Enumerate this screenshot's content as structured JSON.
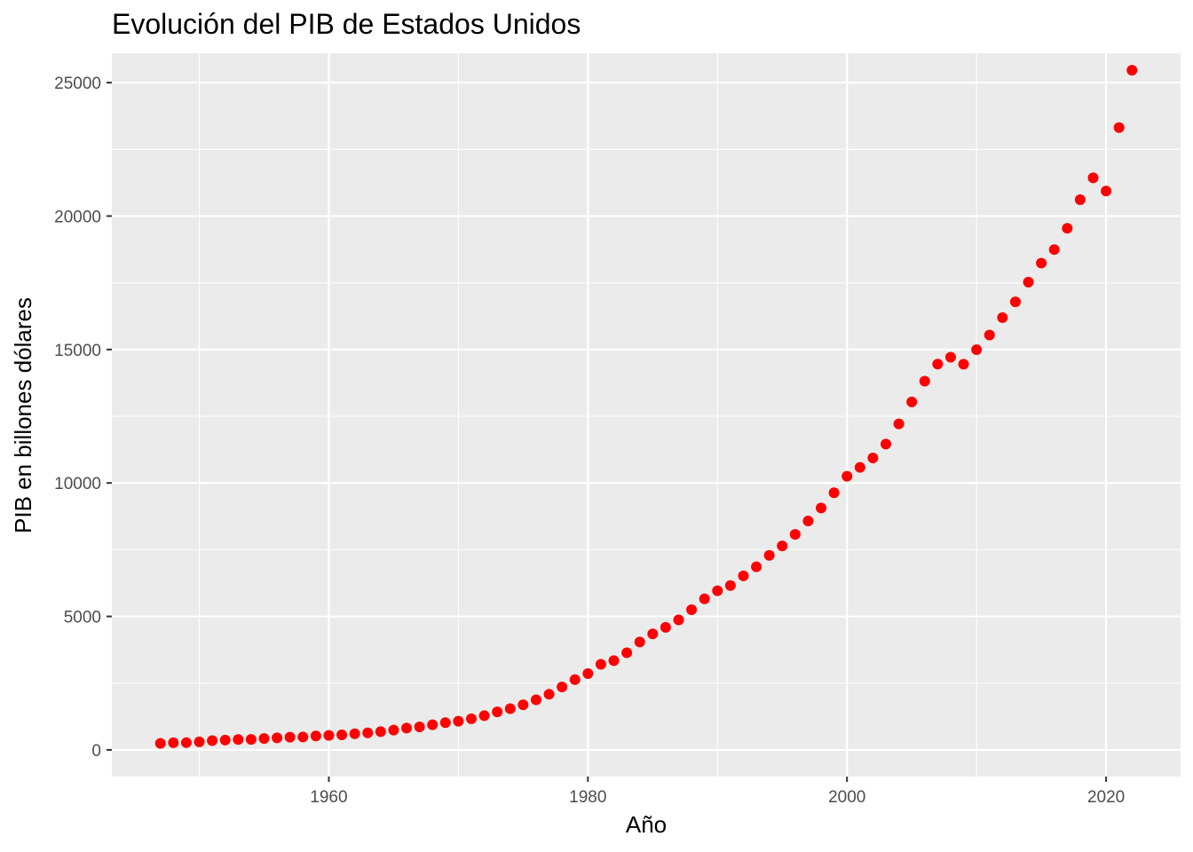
{
  "chart_data": {
    "type": "scatter",
    "title": "Evolución del PIB de Estados Unidos",
    "xlabel": "Año",
    "ylabel": "PIB en billones dólares",
    "xlim": [
      1943.25,
      2025.75
    ],
    "ylim": [
      -1000,
      26100
    ],
    "x_ticks": [
      1960,
      1980,
      2000,
      2020
    ],
    "y_ticks": [
      0,
      5000,
      10000,
      15000,
      20000,
      25000
    ],
    "x_tick_labels": [
      "1960",
      "1980",
      "2000",
      "2020"
    ],
    "y_tick_labels": [
      "0",
      "5000",
      "10000",
      "15000",
      "20000",
      "25000"
    ],
    "grid": true,
    "legend": "none",
    "panel_background": "#EBEBEB",
    "grid_color": "#FFFFFF",
    "point_color": "#FF0000",
    "series": [
      {
        "x": [
          1947,
          1948,
          1949,
          1950,
          1951,
          1952,
          1953,
          1954,
          1955,
          1956,
          1957,
          1958,
          1959,
          1960,
          1961,
          1962,
          1963,
          1964,
          1965,
          1966,
          1967,
          1968,
          1969,
          1970,
          1971,
          1972,
          1973,
          1974,
          1975,
          1976,
          1977,
          1978,
          1979,
          1980,
          1981,
          1982,
          1983,
          1984,
          1985,
          1986,
          1987,
          1988,
          1989,
          1990,
          1991,
          1992,
          1993,
          1994,
          1995,
          1996,
          1997,
          1998,
          1999,
          2000,
          2001,
          2002,
          2003,
          2004,
          2005,
          2006,
          2007,
          2008,
          2009,
          2010,
          2011,
          2012,
          2013,
          2014,
          2015,
          2016,
          2017,
          2018,
          2019,
          2020,
          2021,
          2022
        ],
        "y": [
          244,
          268,
          270,
          300,
          346,
          367,
          389,
          391,
          425,
          449,
          474,
          482,
          522,
          543,
          562,
          604,
          638,
          685,
          743,
          815,
          862,
          942,
          1019,
          1073,
          1165,
          1280,
          1425,
          1545,
          1688,
          1877,
          2086,
          2357,
          2632,
          2857,
          3207,
          3345,
          3638,
          4041,
          4347,
          4590,
          4870,
          5253,
          5658,
          5963,
          6158,
          6520,
          6858,
          7287,
          7640,
          8073,
          8578,
          9063,
          9631,
          10251,
          10582,
          10936,
          11458,
          12214,
          13037,
          13815,
          14452,
          14713,
          14449,
          14992,
          15543,
          16197,
          16785,
          17527,
          18238,
          18745,
          19543,
          20612,
          21433,
          20937,
          23315,
          25464
        ]
      }
    ]
  }
}
